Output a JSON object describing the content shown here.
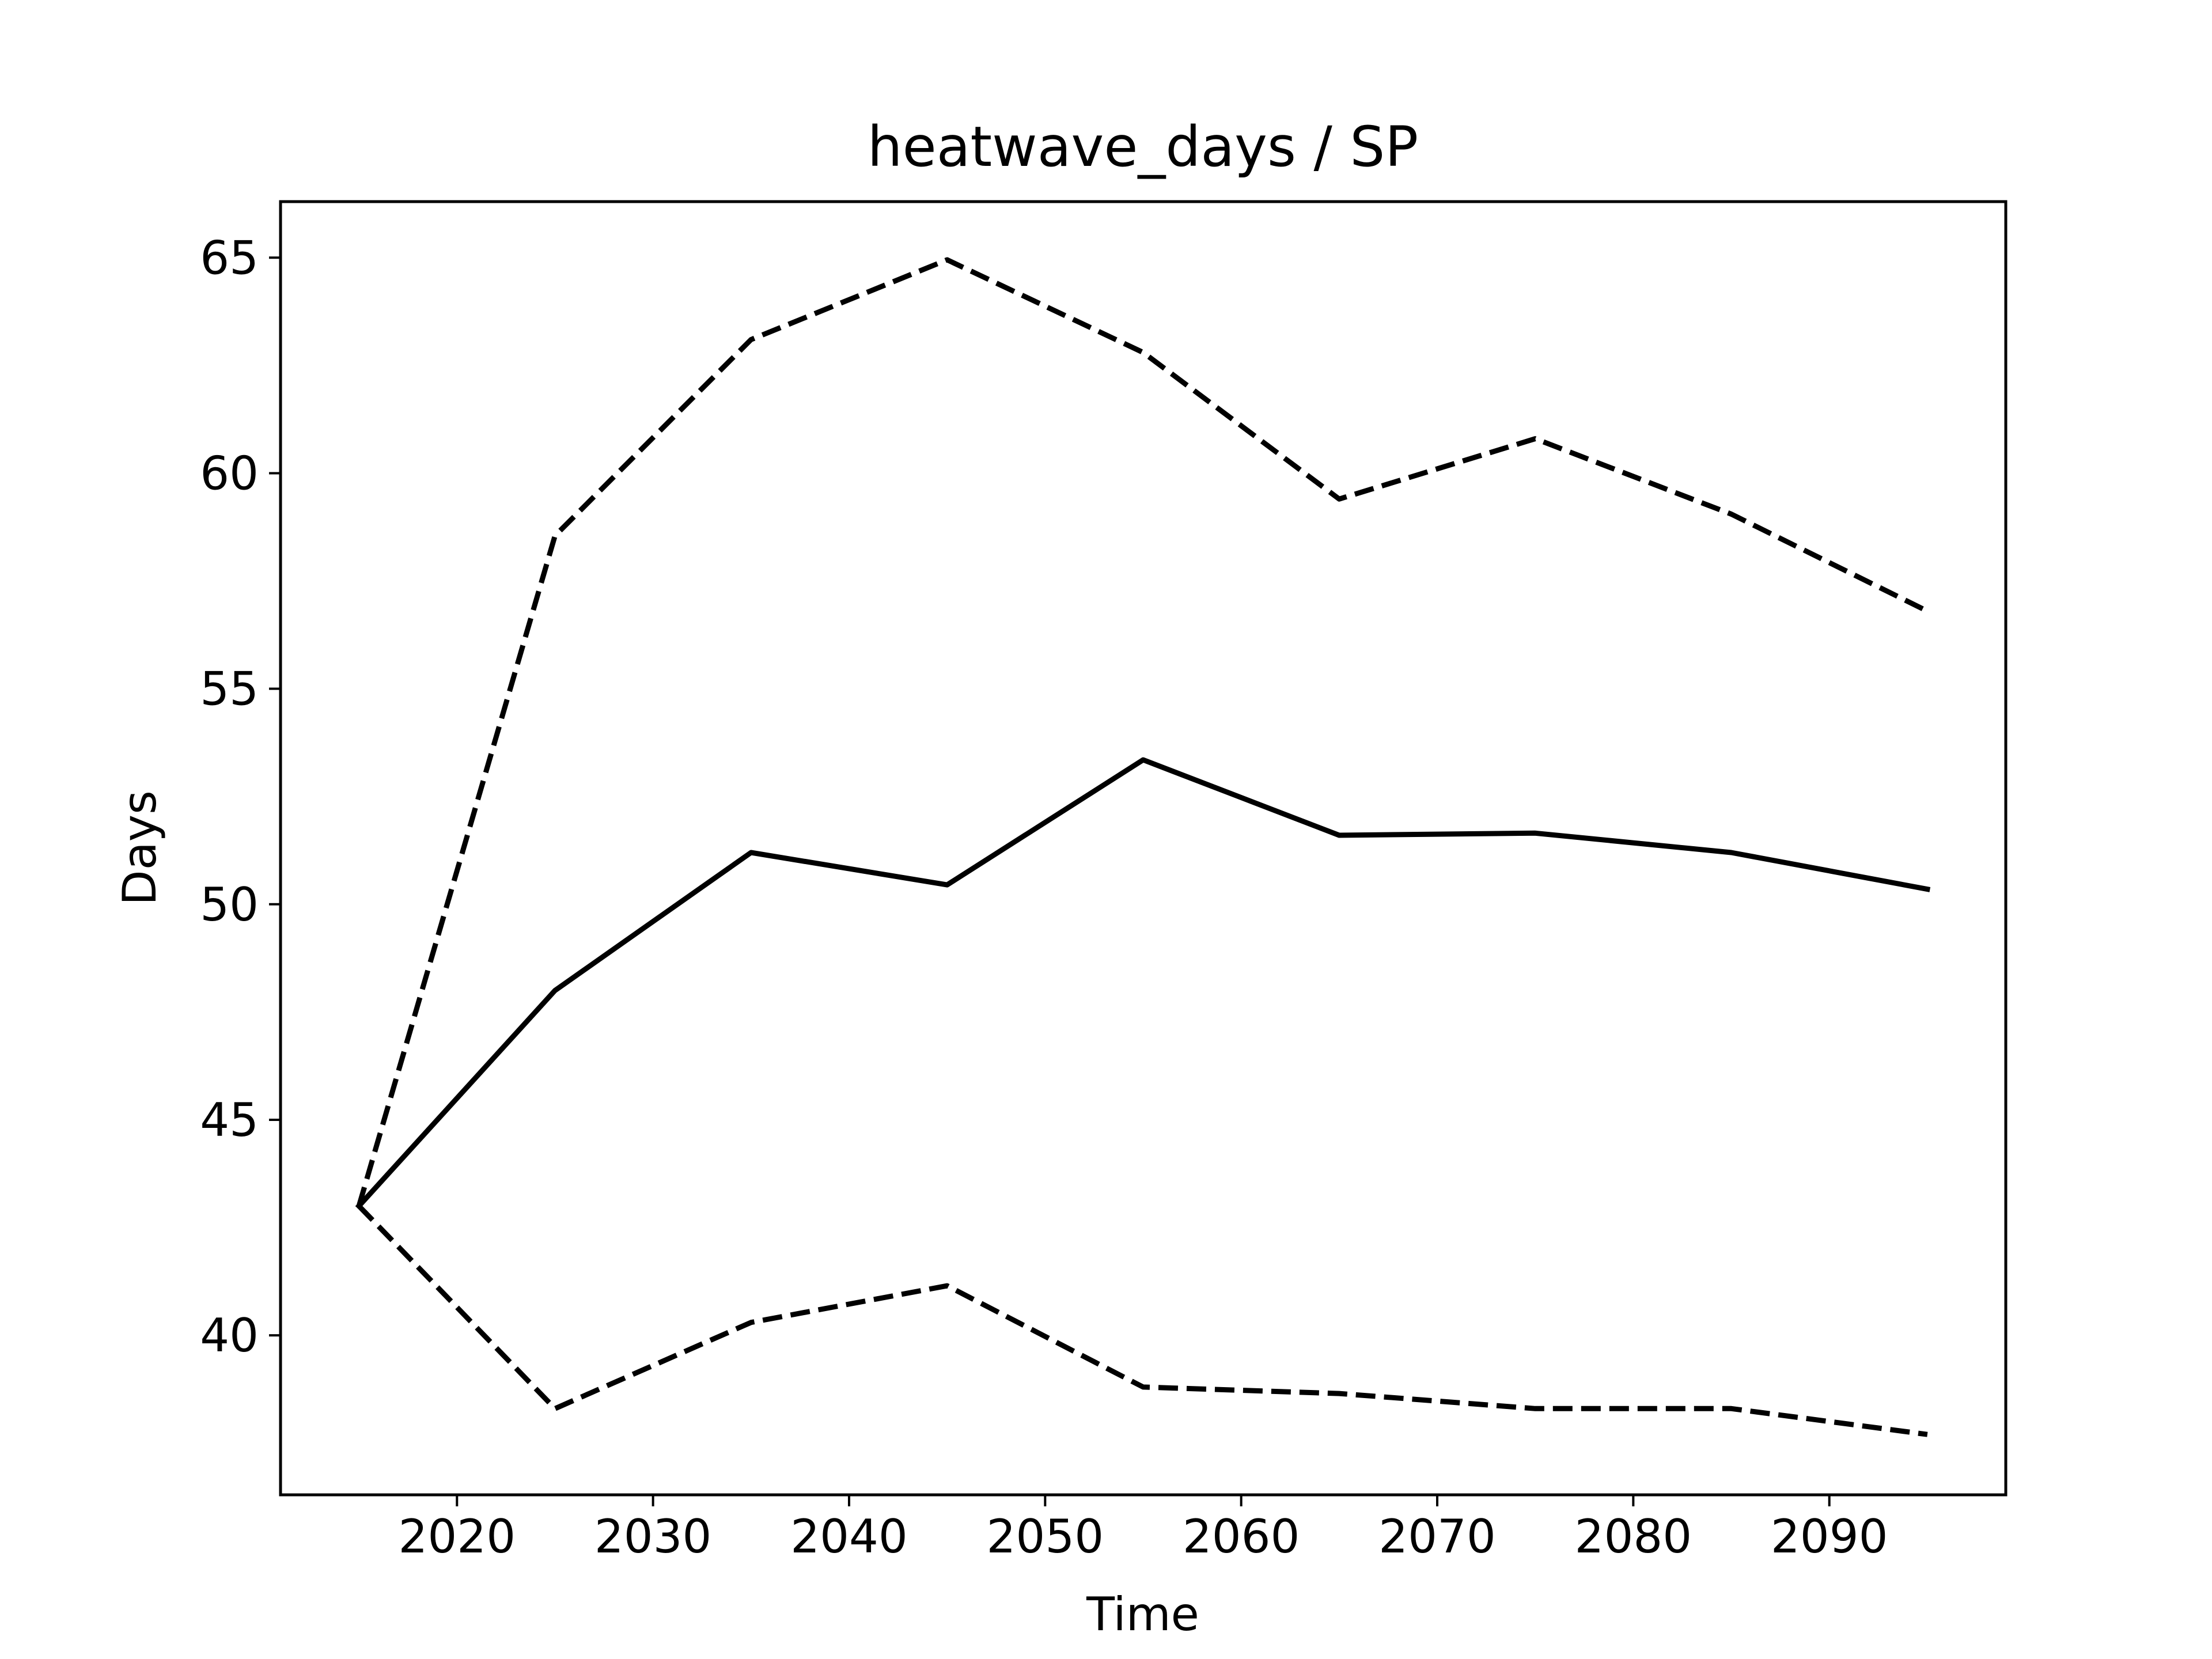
{
  "chart_data": {
    "type": "line",
    "title": "heatwave_days / SP",
    "xlabel": "Time",
    "ylabel": "Days",
    "xlim": [
      2011,
      2099
    ],
    "ylim": [
      36.3,
      66.3
    ],
    "x_ticks": [
      2020,
      2030,
      2040,
      2050,
      2060,
      2070,
      2080,
      2090
    ],
    "y_ticks": [
      40,
      45,
      50,
      55,
      60,
      65
    ],
    "grid": false,
    "x": [
      2015,
      2025,
      2035,
      2045,
      2055,
      2065,
      2075,
      2085,
      2095
    ],
    "series": [
      {
        "style": "solid",
        "values": [
          43.0,
          48.0,
          51.2,
          50.45,
          53.35,
          51.6,
          51.65,
          51.2,
          50.35
        ]
      },
      {
        "style": "dashed",
        "values": [
          43.0,
          58.55,
          63.1,
          64.95,
          62.8,
          59.4,
          60.8,
          59.05,
          56.8
        ]
      },
      {
        "style": "dashed",
        "values": [
          43.0,
          38.3,
          40.3,
          41.15,
          38.8,
          38.65,
          38.3,
          38.3,
          37.7
        ]
      }
    ],
    "colors": {
      "line": "#000000",
      "frame": "#000000",
      "background": "#ffffff"
    }
  }
}
